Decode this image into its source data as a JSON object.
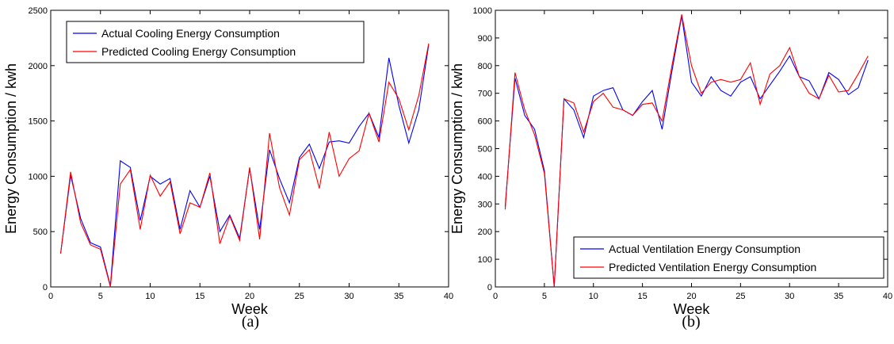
{
  "chart_data": [
    {
      "type": "line",
      "caption": "(a)",
      "xlabel": "Week",
      "ylabel": "Energy Consumption / kwh",
      "xlim": [
        0,
        40
      ],
      "ylim": [
        0,
        2500
      ],
      "xticks": [
        0,
        5,
        10,
        15,
        20,
        25,
        30,
        35,
        40
      ],
      "yticks": [
        0,
        500,
        1000,
        1500,
        2000,
        2500
      ],
      "grid": false,
      "legend_position": "top-left",
      "x": [
        1,
        2,
        3,
        4,
        5,
        6,
        7,
        8,
        9,
        10,
        11,
        12,
        13,
        14,
        15,
        16,
        17,
        18,
        19,
        20,
        21,
        22,
        23,
        24,
        25,
        26,
        27,
        28,
        29,
        30,
        31,
        32,
        33,
        34,
        35,
        36,
        37,
        38
      ],
      "series": [
        {
          "name": "Actual Cooling Energy Consumption",
          "color": "#0000ff",
          "values": [
            300,
            1010,
            620,
            400,
            360,
            10,
            1140,
            1080,
            600,
            1000,
            930,
            980,
            520,
            870,
            720,
            1000,
            500,
            650,
            440,
            1070,
            520,
            1240,
            980,
            760,
            1170,
            1290,
            1070,
            1310,
            1320,
            1300,
            1450,
            1570,
            1350,
            2070,
            1640,
            1300,
            1600,
            2190
          ]
        },
        {
          "name": "Predicted Cooling Energy Consumption",
          "color": "#ff0000",
          "values": [
            300,
            1040,
            580,
            380,
            340,
            0,
            930,
            1060,
            520,
            1010,
            820,
            950,
            480,
            760,
            720,
            1030,
            390,
            640,
            420,
            1080,
            430,
            1390,
            900,
            650,
            1150,
            1240,
            890,
            1400,
            1000,
            1160,
            1230,
            1570,
            1310,
            1850,
            1700,
            1420,
            1730,
            2200
          ]
        }
      ]
    },
    {
      "type": "line",
      "caption": "(b)",
      "xlabel": "Week",
      "ylabel": "Energy Consumption / kwh",
      "xlim": [
        0,
        40
      ],
      "ylim": [
        0,
        1000
      ],
      "xticks": [
        0,
        5,
        10,
        15,
        20,
        25,
        30,
        35,
        40
      ],
      "yticks": [
        0,
        100,
        200,
        300,
        400,
        500,
        600,
        700,
        800,
        900,
        1000
      ],
      "grid": false,
      "legend_position": "bottom-right",
      "x": [
        1,
        2,
        3,
        4,
        5,
        6,
        7,
        8,
        9,
        10,
        11,
        12,
        13,
        14,
        15,
        16,
        17,
        18,
        19,
        20,
        21,
        22,
        23,
        24,
        25,
        26,
        27,
        28,
        29,
        30,
        31,
        32,
        33,
        34,
        35,
        36,
        37,
        38
      ],
      "series": [
        {
          "name": "Actual Ventilation Energy Consumption",
          "color": "#0000ff",
          "values": [
            290,
            755,
            620,
            570,
            420,
            0,
            680,
            640,
            540,
            690,
            710,
            720,
            640,
            620,
            670,
            710,
            570,
            780,
            980,
            740,
            690,
            760,
            710,
            690,
            740,
            760,
            680,
            730,
            780,
            835,
            760,
            745,
            680,
            775,
            750,
            695,
            720,
            820
          ]
        },
        {
          "name": "Predicted Ventilation Energy Consumption",
          "color": "#ff0000",
          "values": [
            280,
            775,
            640,
            550,
            410,
            0,
            680,
            665,
            560,
            670,
            700,
            650,
            640,
            620,
            660,
            665,
            600,
            800,
            985,
            800,
            700,
            740,
            750,
            740,
            750,
            810,
            660,
            770,
            800,
            865,
            760,
            700,
            680,
            765,
            705,
            710,
            770,
            835
          ]
        }
      ]
    }
  ]
}
